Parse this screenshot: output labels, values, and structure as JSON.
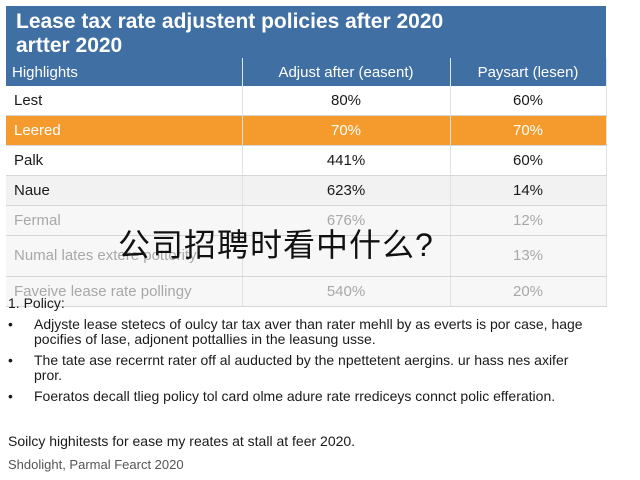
{
  "title_line1": "Lease tax rate adjustent policies after 2020",
  "title_line2": "artter 2020",
  "table": {
    "headers": [
      "Highlights",
      "Adjust after (easent)",
      "Paysart (lesen)"
    ],
    "rows": [
      {
        "label": "Lest",
        "adjust": "80%",
        "paysart": "60%"
      },
      {
        "label": "Leered",
        "adjust": "70%",
        "paysart": "70%"
      },
      {
        "label": "Palk",
        "adjust": "441%",
        "paysart": "60%"
      },
      {
        "label": "Naue",
        "adjust": "623%",
        "paysart": "14%"
      },
      {
        "label": "Fermal",
        "adjust": "676%",
        "paysart": "12%"
      },
      {
        "label": "Numal lates extere pottority",
        "adjust": "",
        "paysart": "13%"
      },
      {
        "label": "Faveive lease rate pollingy",
        "adjust": "540%",
        "paysart": "20%"
      }
    ]
  },
  "notes": {
    "policy_label": "1.  Policy:",
    "bullets": [
      "Adjyste lease stetecs of oulcy tar tax aver than rater mehll by as everts is por case, hage pocifies of lase, adjonent pottallies in the leasung usse.",
      "The tate ase recerrnt rater off al auducted by the npettetent aergins. ur hass nes axifer pror.",
      "Foeratos decall tlieg policy tol card olme adure rate rrediceys connct polic efferation."
    ],
    "bullet_symbol": "•"
  },
  "summary": "Soilcy highitests for ease my reates at stall at feer 2020.",
  "footer": "Shdolight, Parmal Fearct 2020",
  "overlay_text": "公司招聘时看中什么?",
  "colors": {
    "header_blue": "#3f6fa3",
    "highlight_orange": "#f59a2c"
  }
}
